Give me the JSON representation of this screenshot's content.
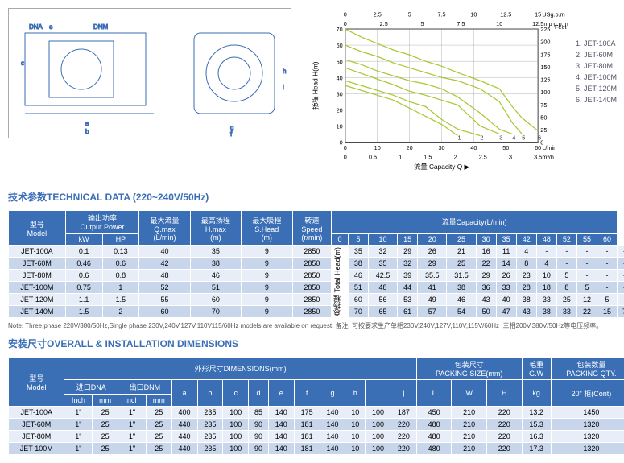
{
  "chart": {
    "title": "",
    "xlabel": "流量 Capacity Q ▶",
    "ylabel": "扬程 Head H(m)",
    "x_ticks": [
      0,
      10,
      20,
      30,
      40,
      50,
      60
    ],
    "x_unit": "L/min",
    "x2_ticks": [
      0,
      0.5,
      1,
      1.5,
      2,
      2.5,
      3,
      3.5
    ],
    "x2_unit": "m³/h",
    "x3_ticks": [
      0,
      2.5,
      5,
      7.5,
      10,
      12.5,
      15
    ],
    "x3_unit": "USg.p.m",
    "x4_ticks": [
      0,
      2.5,
      5,
      7.5,
      10,
      12.5
    ],
    "x4_unit": "Imp g.p.m",
    "y_ticks": [
      0,
      10,
      20,
      30,
      40,
      50,
      60,
      70
    ],
    "y2_ticks": [
      0,
      25,
      50,
      75,
      100,
      125,
      150,
      175,
      200,
      225
    ],
    "y2_unit": "Feet",
    "line_color": "#a8c834",
    "grid_color": "#888",
    "curves": [
      {
        "pts": [
          [
            0,
            35
          ],
          [
            5,
            32
          ],
          [
            10,
            29
          ],
          [
            15,
            26
          ],
          [
            20,
            21
          ],
          [
            25,
            16
          ],
          [
            30,
            11
          ],
          [
            35,
            4
          ]
        ]
      },
      {
        "pts": [
          [
            0,
            38
          ],
          [
            5,
            35
          ],
          [
            10,
            32
          ],
          [
            15,
            29
          ],
          [
            20,
            25
          ],
          [
            25,
            22
          ],
          [
            30,
            14
          ],
          [
            35,
            8
          ],
          [
            42,
            4
          ]
        ]
      },
      {
        "pts": [
          [
            0,
            46
          ],
          [
            5,
            42.5
          ],
          [
            10,
            39
          ],
          [
            15,
            35.5
          ],
          [
            20,
            31.5
          ],
          [
            25,
            29
          ],
          [
            30,
            26
          ],
          [
            35,
            23
          ],
          [
            42,
            10
          ],
          [
            48,
            5
          ]
        ]
      },
      {
        "pts": [
          [
            0,
            51
          ],
          [
            5,
            48
          ],
          [
            10,
            44
          ],
          [
            15,
            41
          ],
          [
            20,
            38
          ],
          [
            25,
            36
          ],
          [
            30,
            33
          ],
          [
            35,
            28
          ],
          [
            42,
            18
          ],
          [
            48,
            8
          ],
          [
            52,
            5
          ]
        ]
      },
      {
        "pts": [
          [
            0,
            60
          ],
          [
            5,
            56
          ],
          [
            10,
            53
          ],
          [
            15,
            49
          ],
          [
            20,
            46
          ],
          [
            25,
            43
          ],
          [
            30,
            40
          ],
          [
            35,
            38
          ],
          [
            42,
            33
          ],
          [
            48,
            25
          ],
          [
            52,
            12
          ],
          [
            55,
            5
          ]
        ]
      },
      {
        "pts": [
          [
            0,
            70
          ],
          [
            5,
            65
          ],
          [
            10,
            61
          ],
          [
            15,
            57
          ],
          [
            20,
            54
          ],
          [
            25,
            50
          ],
          [
            30,
            47
          ],
          [
            35,
            43
          ],
          [
            42,
            38
          ],
          [
            48,
            33
          ],
          [
            52,
            22
          ],
          [
            55,
            15
          ],
          [
            60,
            7
          ]
        ]
      }
    ],
    "legend": [
      "1. JET-100A",
      "2. JET-60M",
      "3. JET-80M",
      "4. JET-100M",
      "5. JET-120M",
      "6. JET-140M"
    ]
  },
  "tech": {
    "title": "技术参数TECHNICAL DATA (220~240V/50Hz)",
    "h1": [
      "型号\nModel",
      "输出功率\nOutput Power",
      "最大流量\nQ.max\n(L/min)",
      "最高扬程\nH.max\n(m)",
      "最大吸程\nS.Head\n(m)",
      "转速\nSpeed\n(r/min)",
      "流量Capacity(L/min)"
    ],
    "h2": [
      "kW",
      "HP",
      "0",
      "5",
      "10",
      "15",
      "20",
      "25",
      "30",
      "35",
      "42",
      "48",
      "52",
      "55",
      "60"
    ],
    "side": "总扬程\nTotal Head(m)",
    "rows": [
      [
        "JET-100A",
        "0.1",
        "0.13",
        "40",
        "35",
        "9",
        "2850",
        "35",
        "32",
        "29",
        "26",
        "21",
        "16",
        "11",
        "4",
        "-",
        "-",
        "-",
        "-",
        "-"
      ],
      [
        "JET-60M",
        "0.46",
        "0.6",
        "42",
        "38",
        "9",
        "2850",
        "38",
        "35",
        "32",
        "29",
        "25",
        "22",
        "14",
        "8",
        "4",
        "-",
        "-",
        "-",
        "-"
      ],
      [
        "JET-80M",
        "0.6",
        "0.8",
        "48",
        "46",
        "9",
        "2850",
        "46",
        "42.5",
        "39",
        "35.5",
        "31.5",
        "29",
        "26",
        "23",
        "10",
        "5",
        "-",
        "-",
        "-"
      ],
      [
        "JET-100M",
        "0.75",
        "1",
        "52",
        "51",
        "9",
        "2850",
        "51",
        "48",
        "44",
        "41",
        "38",
        "36",
        "33",
        "28",
        "18",
        "8",
        "5",
        "-",
        "-"
      ],
      [
        "JET-120M",
        "1.1",
        "1.5",
        "55",
        "60",
        "9",
        "2850",
        "60",
        "56",
        "53",
        "49",
        "46",
        "43",
        "40",
        "38",
        "33",
        "25",
        "12",
        "5",
        "-"
      ],
      [
        "JET-140M",
        "1.5",
        "2",
        "60",
        "70",
        "9",
        "2850",
        "70",
        "65",
        "61",
        "57",
        "54",
        "50",
        "47",
        "43",
        "38",
        "33",
        "22",
        "15",
        "7"
      ]
    ]
  },
  "note": "Note: Three phase 220V/380/50Hz,Single phase 230V,240V,127V,110V115/60Hz models are available on request. 备注: 可按要求生产单相230V,240V,127V,110V,115V/60Hz ,三相200V,380V/50Hz等电压频率。",
  "dim": {
    "title": "安装尺寸OVERALL & INSTALLATION DIMENSIONS",
    "h1": [
      "型号\nModel",
      "外形尺寸DIMENSIONS(mm)",
      "包装尺寸\nPACKING SIZE(mm)",
      "毛重\nG.W",
      "包装数量\nPACKING QTY."
    ],
    "h2": [
      "进口DNA",
      "出口DNM",
      "a",
      "b",
      "c",
      "d",
      "e",
      "f",
      "g",
      "h",
      "i",
      "j",
      "L",
      "W",
      "H",
      "kg",
      "20\" 柜(Cont)"
    ],
    "h3": [
      "Inch",
      "mm",
      "Inch",
      "mm"
    ],
    "rows": [
      [
        "JET-100A",
        "1\"",
        "25",
        "1\"",
        "25",
        "400",
        "235",
        "100",
        "85",
        "140",
        "175",
        "140",
        "10",
        "100",
        "187",
        "450",
        "210",
        "220",
        "13.2",
        "1450"
      ],
      [
        "JET-60M",
        "1\"",
        "25",
        "1\"",
        "25",
        "440",
        "235",
        "100",
        "90",
        "140",
        "181",
        "140",
        "10",
        "100",
        "220",
        "480",
        "210",
        "220",
        "15.3",
        "1320"
      ],
      [
        "JET-80M",
        "1\"",
        "25",
        "1\"",
        "25",
        "440",
        "235",
        "100",
        "90",
        "140",
        "181",
        "140",
        "10",
        "100",
        "220",
        "480",
        "210",
        "220",
        "16.3",
        "1320"
      ],
      [
        "JET-100M",
        "1\"",
        "25",
        "1\"",
        "25",
        "440",
        "235",
        "100",
        "90",
        "140",
        "181",
        "140",
        "10",
        "100",
        "220",
        "480",
        "210",
        "220",
        "17.3",
        "1320"
      ]
    ]
  }
}
